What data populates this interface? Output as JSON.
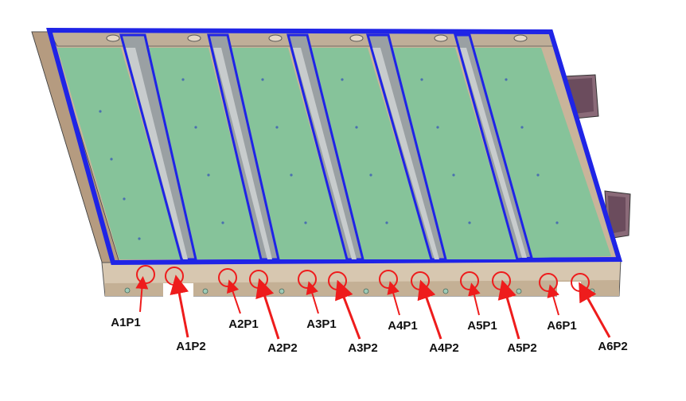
{
  "colors": {
    "background": "#ffffff",
    "frame_blue": "#1f24e6",
    "floor_green": "#86c39a",
    "rib_gray": "#9aa0a3",
    "rail_tan": "#c9b49a",
    "marker_red": "#ee1c1c"
  },
  "points": [
    {
      "id": "A1P1",
      "label": "A1P1"
    },
    {
      "id": "A1P2",
      "label": "A1P2"
    },
    {
      "id": "A2P1",
      "label": "A2P1"
    },
    {
      "id": "A2P2",
      "label": "A2P2"
    },
    {
      "id": "A3P1",
      "label": "A3P1"
    },
    {
      "id": "A3P2",
      "label": "A3P2"
    },
    {
      "id": "A4P1",
      "label": "A4P1"
    },
    {
      "id": "A4P2",
      "label": "A4P2"
    },
    {
      "id": "A5P1",
      "label": "A5P1"
    },
    {
      "id": "A5P2",
      "label": "A5P2"
    },
    {
      "id": "A6P1",
      "label": "A6P1"
    },
    {
      "id": "A6P2",
      "label": "A6P2"
    }
  ]
}
